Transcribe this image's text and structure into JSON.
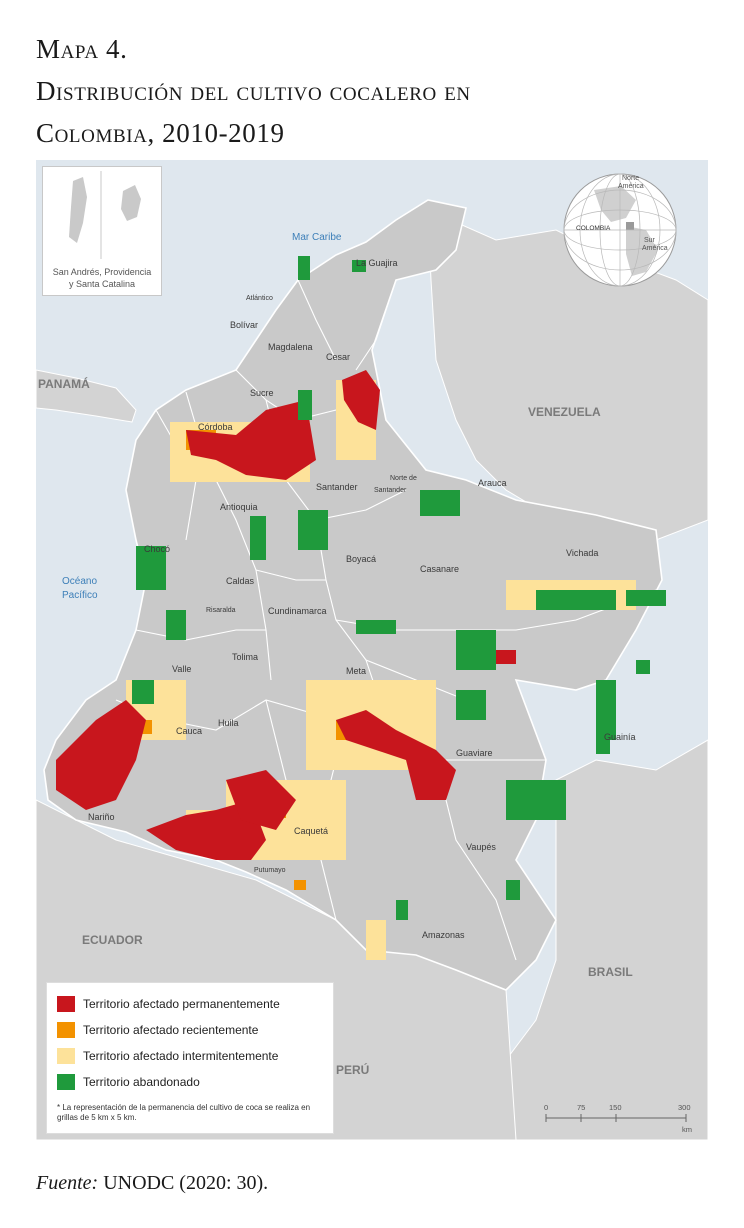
{
  "title": {
    "line1": "Mapa 4.",
    "line2": "Distribución del cultivo cocalero en",
    "line3": "Colombia, 2010-2019"
  },
  "map": {
    "sea_labels": [
      "Mar Caribe",
      "Océano",
      "Pacífico"
    ],
    "countries": [
      "PANAMÁ",
      "VENEZUELA",
      "ECUADOR",
      "BRASIL",
      "PERÚ"
    ],
    "departments": [
      "La Guajira",
      "Atlántico",
      "Bolívar",
      "Magdalena",
      "Cesar",
      "Sucre",
      "Córdoba",
      "Antioquia",
      "Santander",
      "Norte de",
      "Santander",
      "Arauca",
      "Chocó",
      "Caldas",
      "Boyacá",
      "Casanare",
      "Vichada",
      "Risaralda",
      "Cundinamarca",
      "Tolima",
      "Valle",
      "Meta",
      "Cauca",
      "Huila",
      "Guaviare",
      "Guainía",
      "Nariño",
      "Caquetá",
      "Vaupés",
      "Putumayo",
      "Amazonas"
    ],
    "inset_label_line1": "San Andrés, Providencia",
    "inset_label_line2": "y Santa Catalina",
    "globe_labels": [
      "Norte",
      "América",
      "COLOMBIA",
      "Sur",
      "América"
    ],
    "colors": {
      "land": "#c9c9c9",
      "neighbors": "#d3d3d3",
      "sea": "#dfe7ee",
      "boundary": "#ffffff",
      "permanent": "#c8161d",
      "recent": "#f39200",
      "intermittent": "#fde29a",
      "abandoned": "#1f9a3c"
    }
  },
  "legend": {
    "items": [
      {
        "label": "Territorio afectado permanentemente",
        "color": "#c8161d"
      },
      {
        "label": "Territorio afectado recientemente",
        "color": "#f39200"
      },
      {
        "label": "Territorio afectado intermitentemente",
        "color": "#fde29a"
      },
      {
        "label": "Territorio abandonado",
        "color": "#1f9a3c"
      }
    ],
    "note": "* La representación de la permanencia del cultivo de coca se realiza en grillas de 5 km x 5 km."
  },
  "scale_bar": {
    "ticks": [
      "0",
      "75",
      "150",
      "300"
    ],
    "unit": "km"
  },
  "source": {
    "label": "Fuente:",
    "text": " UNODC (2020: 30)."
  }
}
